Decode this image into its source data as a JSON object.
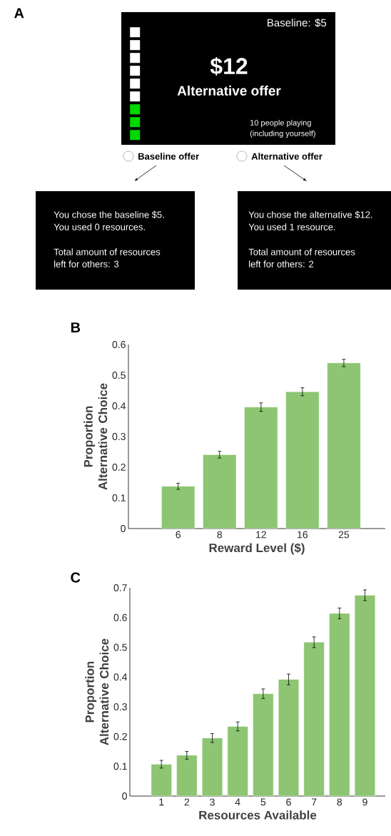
{
  "chart_data": [
    {
      "type": "other",
      "title": "A",
      "annotations": [
        "Baseline: $5",
        "$12",
        "Alternative offer",
        "10 people playing",
        "(including yourself)",
        "Baseline offer",
        "Alternative offer",
        "You chose the baseline $5.",
        "You used 0 resources.",
        "Total amount of resources",
        "left for others:  3",
        "You chose the alternative $12.",
        "You used 1 resource.",
        "Total amount of resources",
        "left for others:  2"
      ]
    },
    {
      "type": "bar",
      "title": "B",
      "xlabel": "Reward Level ($)",
      "ylabel": "Proportion Alternative Choice",
      "categories": [
        "6",
        "8",
        "12",
        "16",
        "25"
      ],
      "color": "#8dc572",
      "values": [
        0.138,
        0.241,
        0.396,
        0.446,
        0.54
      ],
      "errors": [
        0.01,
        0.011,
        0.014,
        0.013,
        0.012
      ],
      "ylim": [
        0,
        0.6
      ],
      "yticks": [
        0,
        0.1,
        0.2,
        0.3,
        0.4,
        0.5,
        0.6
      ]
    },
    {
      "type": "bar",
      "title": "C",
      "xlabel": "Resources Available",
      "ylabel": "Proportion Alternative Choice",
      "categories": [
        "1",
        "2",
        "3",
        "4",
        "5",
        "6",
        "7",
        "8",
        "9"
      ],
      "color": "#8dc572",
      "values": [
        0.107,
        0.137,
        0.195,
        0.234,
        0.344,
        0.392,
        0.517,
        0.614,
        0.675
      ],
      "errors": [
        0.013,
        0.013,
        0.015,
        0.015,
        0.016,
        0.018,
        0.018,
        0.018,
        0.018
      ],
      "ylim": [
        0,
        0.7
      ],
      "yticks": [
        0,
        0.1,
        0.2,
        0.3,
        0.4,
        0.5,
        0.6,
        0.7
      ]
    }
  ]
}
